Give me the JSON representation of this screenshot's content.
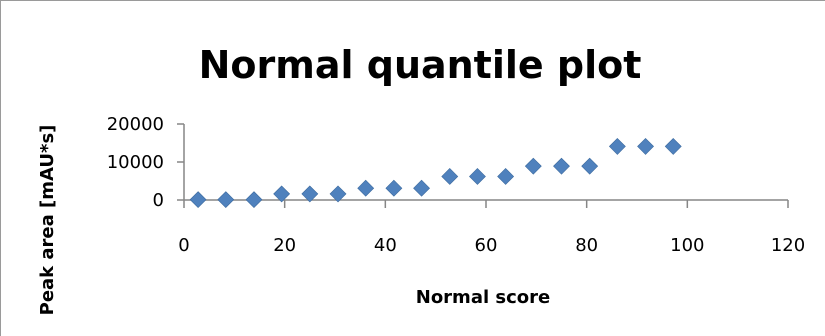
{
  "chart_data": {
    "type": "scatter",
    "title": "Normal quantile plot",
    "xlabel": "Normal score",
    "ylabel": "Peak area [mAU*s]",
    "xlim": [
      0,
      120
    ],
    "ylim": [
      0,
      20000
    ],
    "xticks": [
      0,
      20,
      40,
      60,
      80,
      100,
      120
    ],
    "xtick_labels": [
      "0",
      "20",
      "40",
      "60",
      "80",
      "100",
      "120"
    ],
    "yticks": [
      0,
      10000,
      20000
    ],
    "ytick_labels": [
      "0",
      "10000",
      "20000"
    ],
    "grid": false,
    "legend": "none",
    "marker": "diamond",
    "marker_color": "#4f81bd",
    "series": [
      {
        "x": [
          2.8,
          8.3,
          13.9,
          19.4,
          25.0,
          30.6,
          36.1,
          41.7,
          47.2,
          52.8,
          58.3,
          63.9,
          69.4,
          75.0,
          80.6,
          86.1,
          91.7,
          97.2
        ],
        "y": [
          100,
          100,
          100,
          1600,
          1600,
          1600,
          3100,
          3100,
          3100,
          6200,
          6200,
          6200,
          8900,
          8900,
          8900,
          14100,
          14100,
          14100
        ]
      }
    ]
  }
}
